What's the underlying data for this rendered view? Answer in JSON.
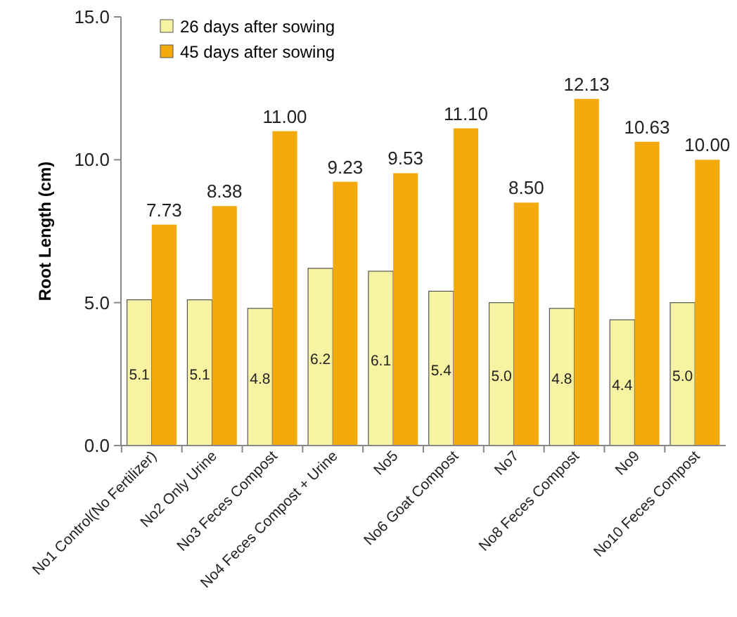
{
  "chart_data": {
    "type": "bar",
    "ylabel": "Root Length (cm)",
    "categories": [
      "No1 Control(No Fertilizer)",
      "No2 Only Urine",
      "No3 Feces Compost",
      "No4 Feces Compost + Urine",
      "No5",
      "No6 Goat Compost",
      "No7",
      "No8 Feces Compost",
      "No9",
      "No10 Feces Compost"
    ],
    "series": [
      {
        "name": "26 days after sowing",
        "color": "#f7f3a2",
        "values": [
          5.1,
          5.1,
          4.8,
          6.2,
          6.1,
          5.4,
          5.0,
          4.8,
          4.4,
          5.0
        ],
        "value_labels": [
          "5.1",
          "5.1",
          "4.8",
          "6.2",
          "6.1",
          "5.4",
          "5.0",
          "4.8",
          "4.4",
          "5.0"
        ]
      },
      {
        "name": "45 days after sowing",
        "color": "#f2aa0c",
        "values": [
          7.73,
          8.38,
          11.0,
          9.23,
          9.53,
          11.1,
          8.5,
          12.13,
          10.63,
          10.0
        ],
        "value_labels": [
          "7.73",
          "8.38",
          "11.00",
          "9.23",
          "9.53",
          "11.10",
          "8.50",
          "12.13",
          "10.63",
          "10.00"
        ]
      }
    ],
    "ylim": [
      0,
      15
    ],
    "yticks": [
      {
        "value": 0,
        "label": "0.0"
      },
      {
        "value": 5,
        "label": "5.0"
      },
      {
        "value": 10,
        "label": "10.0"
      },
      {
        "value": 15,
        "label": "15.0"
      }
    ],
    "legend": "top left"
  }
}
